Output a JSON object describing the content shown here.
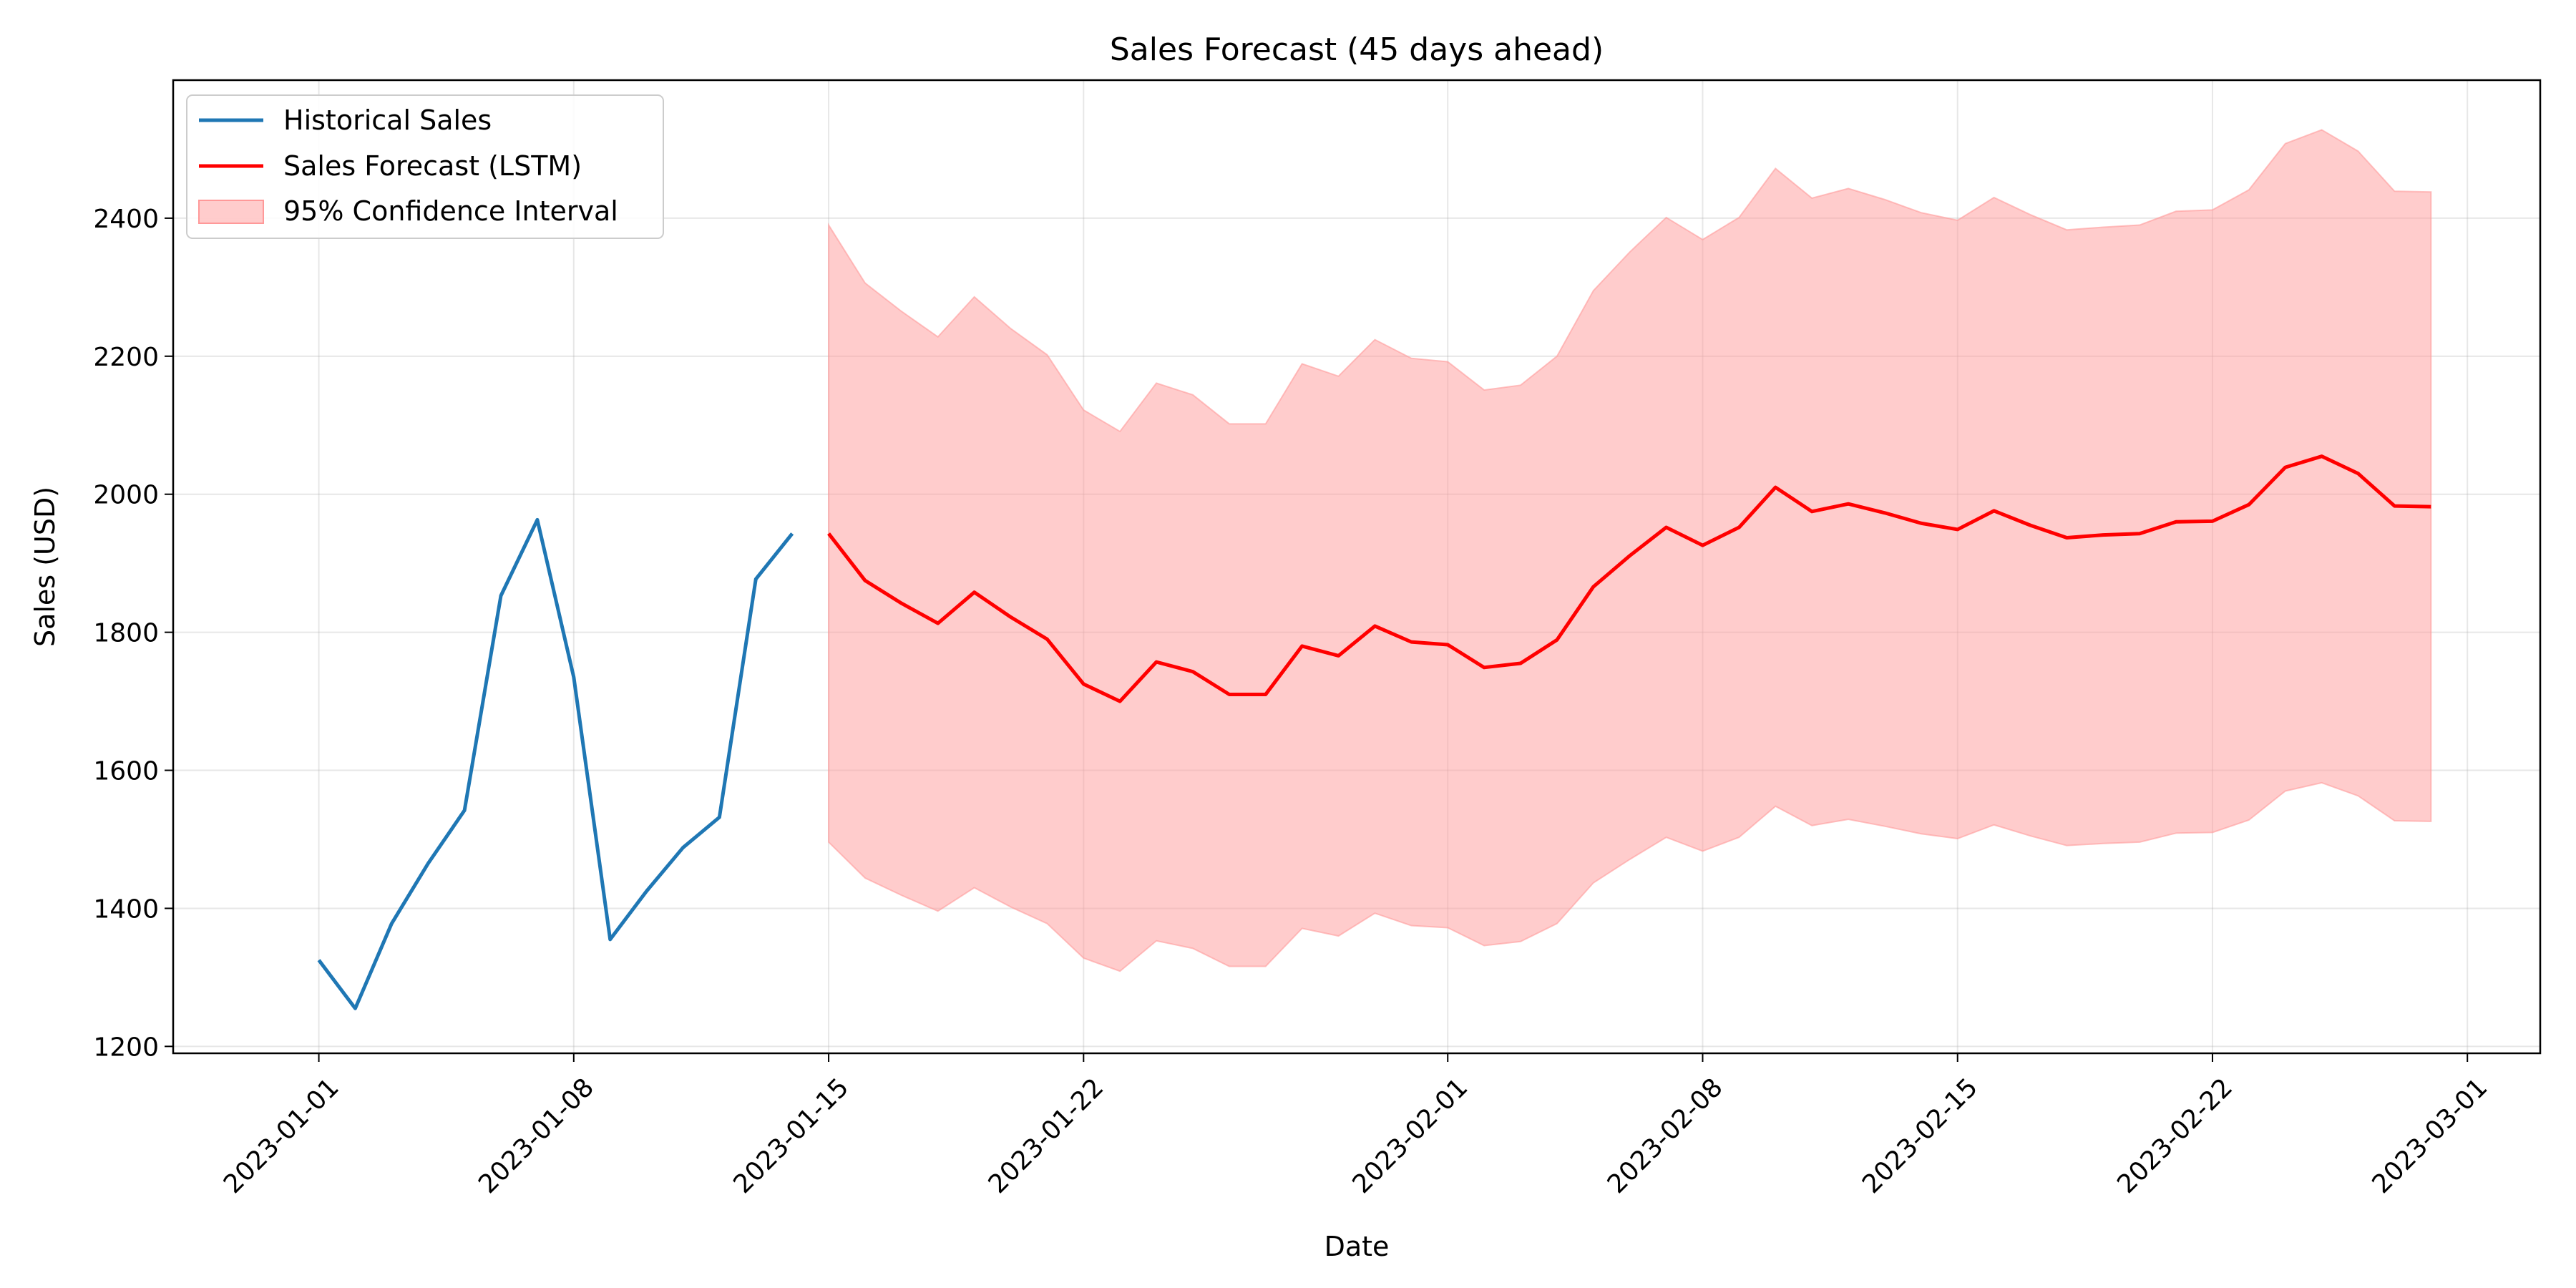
{
  "chart_data": {
    "type": "line",
    "title": "Sales Forecast (45 days ahead)",
    "xlabel": "Date",
    "ylabel": "Sales (USD)",
    "xlim": [
      "2022-12-28",
      "2023-03-03"
    ],
    "ylim": [
      1190,
      2600
    ],
    "grid": true,
    "legend_position": "top-left",
    "x_ticks": [
      "2023-01-01",
      "2023-01-08",
      "2023-01-15",
      "2023-01-22",
      "2023-02-01",
      "2023-02-08",
      "2023-02-15",
      "2023-02-22",
      "2023-03-01"
    ],
    "y_ticks": [
      "1200",
      "1400",
      "1600",
      "1800",
      "2000",
      "2200",
      "2400"
    ],
    "series": [
      {
        "name": "Historical Sales",
        "color": "#1f77b4",
        "x": [
          "2023-01-01",
          "2023-01-02",
          "2023-01-03",
          "2023-01-04",
          "2023-01-05",
          "2023-01-06",
          "2023-01-07",
          "2023-01-08",
          "2023-01-09",
          "2023-01-10",
          "2023-01-11",
          "2023-01-12",
          "2023-01-13",
          "2023-01-14"
        ],
        "y": [
          1325,
          1255,
          1378,
          1465,
          1542,
          1853,
          1963,
          1735,
          1355,
          1425,
          1488,
          1532,
          1877,
          1943
        ]
      },
      {
        "name": "Sales Forecast (LSTM)",
        "color": "#ff0000",
        "x": [
          "2023-01-15",
          "2023-01-16",
          "2023-01-17",
          "2023-01-18",
          "2023-01-19",
          "2023-01-20",
          "2023-01-21",
          "2023-01-22",
          "2023-01-23",
          "2023-01-24",
          "2023-01-25",
          "2023-01-26",
          "2023-01-27",
          "2023-01-28",
          "2023-01-29",
          "2023-01-30",
          "2023-01-31",
          "2023-02-01",
          "2023-02-02",
          "2023-02-03",
          "2023-02-04",
          "2023-02-05",
          "2023-02-06",
          "2023-02-07",
          "2023-02-08",
          "2023-02-09",
          "2023-02-10",
          "2023-02-11",
          "2023-02-12",
          "2023-02-13",
          "2023-02-14",
          "2023-02-15",
          "2023-02-16",
          "2023-02-17",
          "2023-02-18",
          "2023-02-19",
          "2023-02-20",
          "2023-02-21",
          "2023-02-22",
          "2023-02-23",
          "2023-02-24",
          "2023-02-25",
          "2023-02-26",
          "2023-02-27",
          "2023-02-28"
        ],
        "y": [
          1943,
          1875,
          1842,
          1813,
          1858,
          1822,
          1790,
          1725,
          1700,
          1757,
          1743,
          1710,
          1710,
          1780,
          1766,
          1809,
          1786,
          1782,
          1749,
          1755,
          1789,
          1866,
          1911,
          1952,
          1926,
          1952,
          2010,
          1975,
          1986,
          1973,
          1958,
          1949,
          1976,
          1955,
          1937,
          1941,
          1943,
          1960,
          1961,
          1985,
          2039,
          2055,
          2030,
          1983,
          1982
        ]
      }
    ],
    "confidence_interval": {
      "name": "95% Confidence Interval",
      "color": "#ff9999",
      "x": [
        "2023-01-15",
        "2023-01-16",
        "2023-01-17",
        "2023-01-18",
        "2023-01-19",
        "2023-01-20",
        "2023-01-21",
        "2023-01-22",
        "2023-01-23",
        "2023-01-24",
        "2023-01-25",
        "2023-01-26",
        "2023-01-27",
        "2023-01-28",
        "2023-01-29",
        "2023-01-30",
        "2023-01-31",
        "2023-02-01",
        "2023-02-02",
        "2023-02-03",
        "2023-02-04",
        "2023-02-05",
        "2023-02-06",
        "2023-02-07",
        "2023-02-08",
        "2023-02-09",
        "2023-02-10",
        "2023-02-11",
        "2023-02-12",
        "2023-02-13",
        "2023-02-14",
        "2023-02-15",
        "2023-02-16",
        "2023-02-17",
        "2023-02-18",
        "2023-02-19",
        "2023-02-20",
        "2023-02-21",
        "2023-02-22",
        "2023-02-23",
        "2023-02-24",
        "2023-02-25",
        "2023-02-26",
        "2023-02-27",
        "2023-02-28"
      ],
      "upper": [
        2390,
        2306,
        2265,
        2228,
        2286,
        2240,
        2202,
        2122,
        2091,
        2161,
        2144,
        2102,
        2102,
        2189,
        2171,
        2224,
        2197,
        2192,
        2151,
        2158,
        2200,
        2295,
        2351,
        2401,
        2369,
        2401,
        2472,
        2429,
        2443,
        2427,
        2408,
        2397,
        2430,
        2405,
        2383,
        2387,
        2390,
        2410,
        2412,
        2441,
        2508,
        2528,
        2497,
        2439,
        2438
      ],
      "lower": [
        1496,
        1444,
        1419,
        1396,
        1430,
        1402,
        1378,
        1328,
        1309,
        1353,
        1342,
        1316,
        1316,
        1371,
        1360,
        1393,
        1375,
        1372,
        1346,
        1352,
        1378,
        1437,
        1471,
        1503,
        1483,
        1503,
        1548,
        1520,
        1529,
        1519,
        1508,
        1501,
        1521,
        1505,
        1491,
        1494,
        1496,
        1509,
        1510,
        1528,
        1570,
        1582,
        1563,
        1527,
        1526
      ]
    }
  }
}
